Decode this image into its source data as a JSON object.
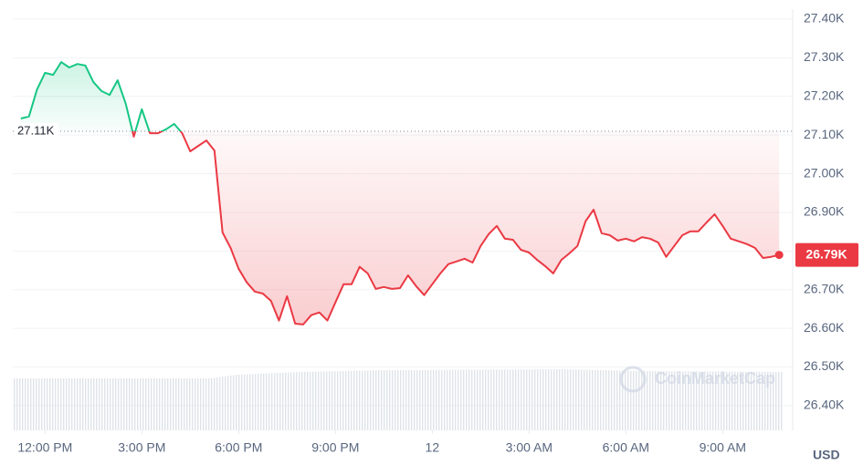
{
  "chart_data": {
    "type": "line",
    "up_color": "#16c784",
    "down_color": "#ea3943",
    "grid": true,
    "baseline": {
      "value": 27110,
      "label": "27.11K"
    },
    "last_price": {
      "value": 26790,
      "label": "26.79K"
    },
    "currency": "USD",
    "watermark": "CoinMarketCap",
    "xlim": [
      11,
      35.17
    ],
    "xticks": [
      {
        "value": 12,
        "label": "12:00 PM"
      },
      {
        "value": 15,
        "label": "3:00 PM"
      },
      {
        "value": 18,
        "label": "6:00 PM"
      },
      {
        "value": 21,
        "label": "9:00 PM"
      },
      {
        "value": 24,
        "label": "12"
      },
      {
        "value": 27,
        "label": "3:00 AM"
      },
      {
        "value": 30,
        "label": "6:00 AM"
      },
      {
        "value": 33,
        "label": "9:00 AM"
      }
    ],
    "ylim": [
      26336,
      27426
    ],
    "yticks": [
      {
        "value": 26400,
        "label": "26.40K"
      },
      {
        "value": 26500,
        "label": "26.50K"
      },
      {
        "value": 26600,
        "label": "26.60K"
      },
      {
        "value": 26700,
        "label": "26.70K"
      },
      {
        "value": 26800,
        "label": "26.80K"
      },
      {
        "value": 26900,
        "label": "26.90K"
      },
      {
        "value": 27000,
        "label": "27.00K"
      },
      {
        "value": 27100,
        "label": "27.10K"
      },
      {
        "value": 27200,
        "label": "27.20K"
      },
      {
        "value": 27300,
        "label": "27.30K"
      },
      {
        "value": 27400,
        "label": "27.40K"
      }
    ],
    "x": [
      11.25,
      11.5,
      11.75,
      12,
      12.25,
      12.5,
      12.75,
      13,
      13.25,
      13.5,
      13.75,
      14,
      14.25,
      14.5,
      14.75,
      15,
      15.25,
      15.5,
      15.75,
      16,
      16.25,
      16.5,
      16.75,
      17,
      17.25,
      17.5,
      17.75,
      18,
      18.25,
      18.5,
      18.75,
      19,
      19.25,
      19.5,
      19.75,
      20,
      20.25,
      20.5,
      20.75,
      21,
      21.25,
      21.5,
      21.75,
      22,
      22.25,
      22.5,
      22.75,
      23,
      23.25,
      23.5,
      23.75,
      24,
      24.25,
      24.5,
      24.75,
      25,
      25.25,
      25.5,
      25.75,
      26,
      26.25,
      26.5,
      26.75,
      27,
      27.25,
      27.5,
      27.75,
      28,
      28.25,
      28.5,
      28.75,
      29,
      29.25,
      29.5,
      29.75,
      30,
      30.25,
      30.5,
      30.75,
      31,
      31.25,
      31.5,
      31.75,
      32,
      32.25,
      32.5,
      32.75,
      33,
      33.25,
      33.5,
      33.75,
      34,
      34.25,
      34.5,
      34.75
    ],
    "values": [
      27143,
      27148,
      27218,
      27261,
      27256,
      27289,
      27275,
      27284,
      27280,
      27237,
      27214,
      27204,
      27242,
      27181,
      27096,
      27167,
      27105,
      27105,
      27115,
      27129,
      27105,
      27058,
      27072,
      27086,
      27060,
      26848,
      26808,
      26754,
      26719,
      26695,
      26690,
      26671,
      26620,
      26683,
      26612,
      26610,
      26634,
      26641,
      26620,
      26667,
      26714,
      26714,
      26759,
      26742,
      26702,
      26707,
      26702,
      26704,
      26737,
      26709,
      26686,
      26714,
      26742,
      26766,
      26773,
      26780,
      26770,
      26813,
      26844,
      26865,
      26832,
      26829,
      26803,
      26796,
      26777,
      26761,
      26742,
      26777,
      26794,
      26813,
      26877,
      26907,
      26846,
      26841,
      26827,
      26832,
      26825,
      26836,
      26832,
      26822,
      26785,
      26813,
      26841,
      26851,
      26851,
      26874,
      26895,
      26865,
      26832,
      26825,
      26818,
      26808,
      26782,
      26785,
      26790
    ]
  }
}
